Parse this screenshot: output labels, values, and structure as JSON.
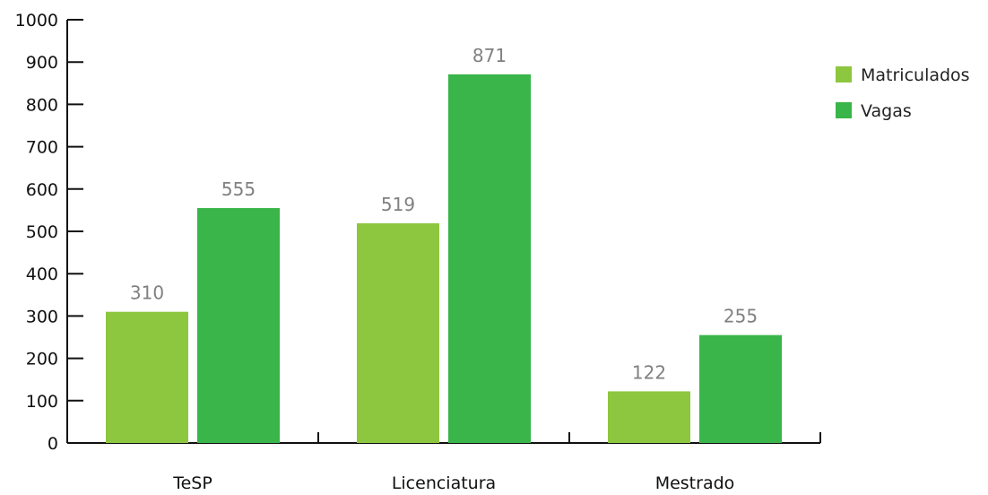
{
  "chart_data": {
    "type": "bar",
    "categories": [
      "TeSP",
      "Licenciatura",
      "Mestrado"
    ],
    "series": [
      {
        "name": "Matriculados",
        "values": [
          310,
          519,
          122
        ],
        "color": "#8dc63f"
      },
      {
        "name": "Vagas",
        "values": [
          555,
          871,
          255
        ],
        "color": "#39b54a"
      }
    ],
    "ylim": [
      0,
      1000
    ],
    "yticks": [
      0,
      100,
      200,
      300,
      400,
      500,
      600,
      700,
      800,
      900,
      1000
    ],
    "grid": false,
    "legend_position": "right",
    "title": "",
    "xlabel": "",
    "ylabel": ""
  }
}
